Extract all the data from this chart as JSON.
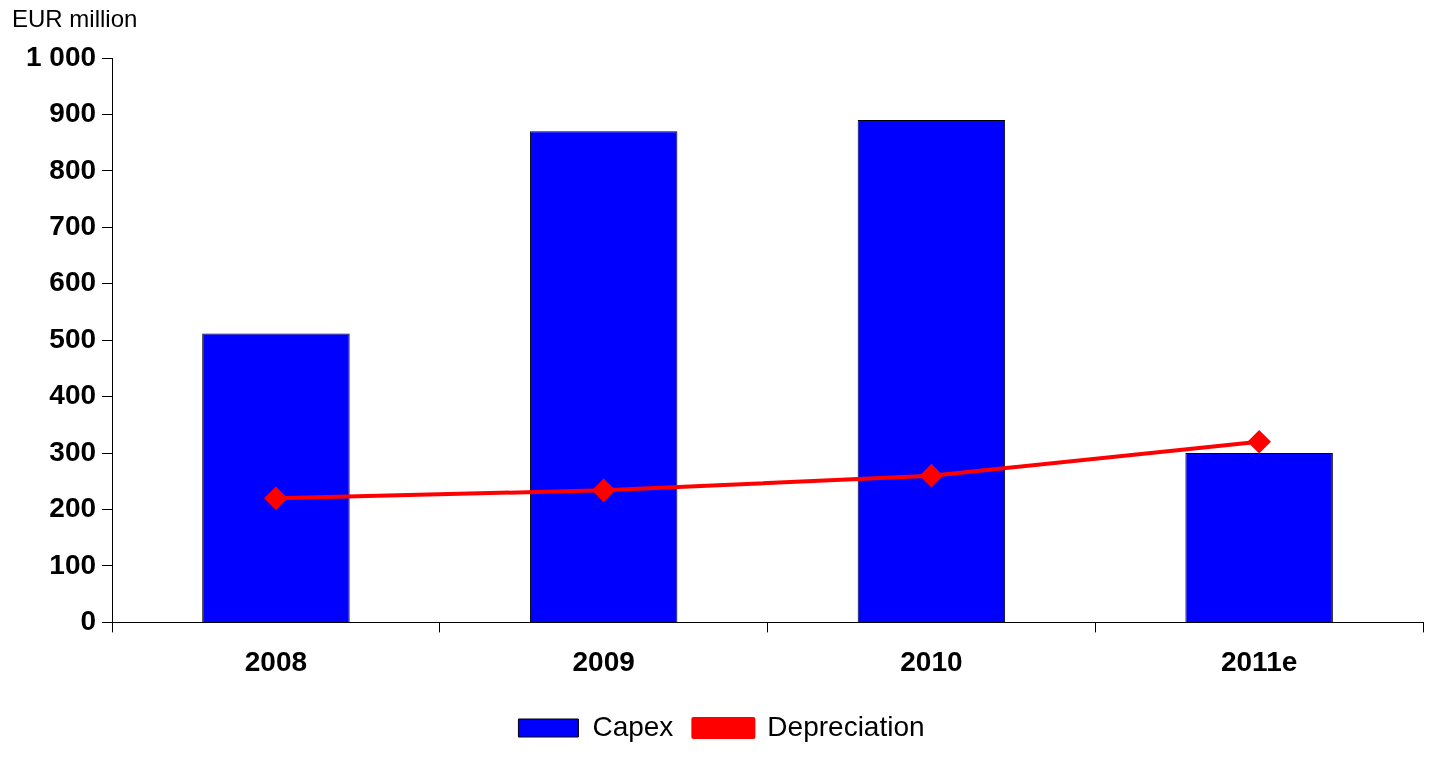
{
  "chart_data": {
    "type": "bar",
    "ylabel": "EUR million",
    "categories": [
      "2008",
      "2009",
      "2010",
      "2011e"
    ],
    "series": [
      {
        "name": "Capex",
        "color": "#0000ff",
        "values": [
          512,
          870,
          890,
          300
        ]
      },
      {
        "name": "Depreciation",
        "type": "line",
        "color": "#ff0000",
        "values": [
          220,
          234,
          260,
          320
        ],
        "marker": "diamond"
      }
    ],
    "ylim": [
      0,
      1000
    ],
    "yticks": [
      0,
      100,
      200,
      300,
      400,
      500,
      600,
      700,
      800,
      900,
      {
        "value": 1000,
        "label": "1 000"
      }
    ],
    "grid": false,
    "legend": "bottom"
  }
}
